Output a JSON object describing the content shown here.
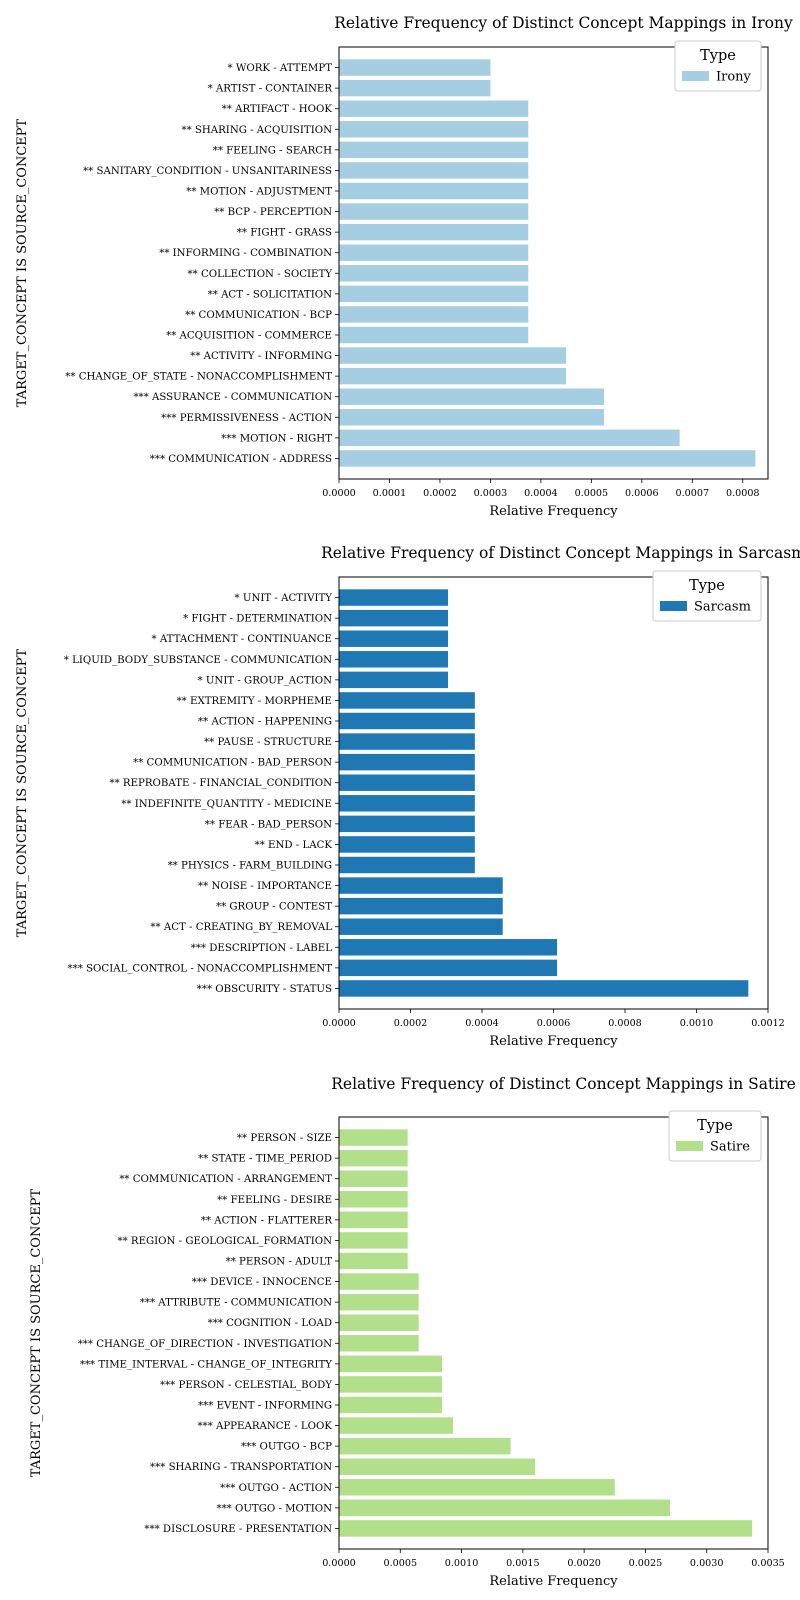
{
  "chart_data": [
    {
      "type": "bar",
      "orientation": "horizontal",
      "title": "Relative Frequency of Distinct Concept Mappings in Irony",
      "xlabel": "Relative Frequency",
      "ylabel": "TARGET_CONCEPT IS SOURCE_CONCEPT",
      "legend_title": "Type",
      "legend_position": "top-right",
      "series_name": "Irony",
      "color": "#a6cee3",
      "xlim": [
        0,
        0.00085
      ],
      "xticks": [
        "0.0000",
        "0.0001",
        "0.0002",
        "0.0003",
        "0.0004",
        "0.0005",
        "0.0006",
        "0.0007",
        "0.0008"
      ],
      "xtick_values": [
        0,
        0.0001,
        0.0002,
        0.0003,
        0.0004,
        0.0005,
        0.0006,
        0.0007,
        0.0008
      ],
      "categories": [
        "* WORK - ATTEMPT",
        "* ARTIST - CONTAINER",
        "** ARTIFACT - HOOK",
        "** SHARING - ACQUISITION",
        "** FEELING - SEARCH",
        "** SANITARY_CONDITION - UNSANITARINESS",
        "** MOTION - ADJUSTMENT",
        "** BCP - PERCEPTION",
        "** FIGHT - GRASS",
        "** INFORMING - COMBINATION",
        "** COLLECTION - SOCIETY",
        "** ACT - SOLICITATION",
        "** COMMUNICATION - BCP",
        "** ACQUISITION - COMMERCE",
        "** ACTIVITY - INFORMING",
        "** CHANGE_OF_STATE - NONACCOMPLISHMENT",
        "*** ASSURANCE - COMMUNICATION",
        "*** PERMISSIVENESS - ACTION",
        "*** MOTION - RIGHT",
        "*** COMMUNICATION - ADDRESS"
      ],
      "values": [
        0.0003,
        0.0003,
        0.000375,
        0.000375,
        0.000375,
        0.000375,
        0.000375,
        0.000375,
        0.000375,
        0.000375,
        0.000375,
        0.000375,
        0.000375,
        0.000375,
        0.00045,
        0.00045,
        0.000525,
        0.000525,
        0.000675,
        0.000825
      ]
    },
    {
      "type": "bar",
      "orientation": "horizontal",
      "title": "Relative Frequency of Distinct Concept Mappings in Sarcasm",
      "xlabel": "Relative Frequency",
      "ylabel": "TARGET_CONCEPT IS SOURCE_CONCEPT",
      "legend_title": "Type",
      "legend_position": "top-right",
      "series_name": "Sarcasm",
      "color": "#1f78b4",
      "xlim": [
        0,
        0.0012
      ],
      "xticks": [
        "0.0000",
        "0.0002",
        "0.0004",
        "0.0006",
        "0.0008",
        "0.0010",
        "0.0012"
      ],
      "xtick_values": [
        0,
        0.0002,
        0.0004,
        0.0006,
        0.0008,
        0.001,
        0.0012
      ],
      "categories": [
        "* UNIT - ACTIVITY",
        "* FIGHT - DETERMINATION",
        "* ATTACHMENT - CONTINUANCE",
        "* LIQUID_BODY_SUBSTANCE - COMMUNICATION",
        "* UNIT - GROUP_ACTION",
        "** EXTREMITY - MORPHEME",
        "** ACTION - HAPPENING",
        "** PAUSE - STRUCTURE",
        "** COMMUNICATION - BAD_PERSON",
        "** REPROBATE - FINANCIAL_CONDITION",
        "** INDEFINITE_QUANTITY - MEDICINE",
        "** FEAR - BAD_PERSON",
        "** END - LACK",
        "** PHYSICS - FARM_BUILDING",
        "** NOISE - IMPORTANCE",
        "** GROUP - CONTEST",
        "** ACT - CREATING_BY_REMOVAL",
        "*** DESCRIPTION - LABEL",
        "*** SOCIAL_CONTROL - NONACCOMPLISHMENT",
        "*** OBSCURITY - STATUS"
      ],
      "values": [
        0.000305,
        0.000305,
        0.000305,
        0.000305,
        0.000305,
        0.00038,
        0.00038,
        0.00038,
        0.00038,
        0.00038,
        0.00038,
        0.00038,
        0.00038,
        0.00038,
        0.000458,
        0.000458,
        0.000458,
        0.00061,
        0.00061,
        0.001145
      ]
    },
    {
      "type": "bar",
      "orientation": "horizontal",
      "title": "Relative Frequency of Distinct Concept Mappings in Satire",
      "xlabel": "Relative Frequency",
      "ylabel": "TARGET_CONCEPT IS SOURCE_CONCEPT",
      "legend_title": "Type",
      "legend_position": "top-right",
      "series_name": "Satire",
      "color": "#b2df8a",
      "xlim": [
        0,
        0.0035
      ],
      "xticks": [
        "0.0000",
        "0.0005",
        "0.0010",
        "0.0015",
        "0.0020",
        "0.0025",
        "0.0030",
        "0.0035"
      ],
      "xtick_values": [
        0,
        0.0005,
        0.001,
        0.0015,
        0.002,
        0.0025,
        0.003,
        0.0035
      ],
      "categories": [
        "** PERSON - SIZE",
        "** STATE - TIME_PERIOD",
        "** COMMUNICATION - ARRANGEMENT",
        "** FEELING - DESIRE",
        "** ACTION - FLATTERER",
        "** REGION - GEOLOGICAL_FORMATION",
        "** PERSON - ADULT",
        "*** DEVICE - INNOCENCE",
        "*** ATTRIBUTE - COMMUNICATION",
        "*** COGNITION - LOAD",
        "*** CHANGE_OF_DIRECTION - INVESTIGATION",
        "*** TIME_INTERVAL - CHANGE_OF_INTEGRITY",
        "*** PERSON - CELESTIAL_BODY",
        "*** EVENT - INFORMING",
        "*** APPEARANCE - LOOK",
        "*** OUTGO - BCP",
        "*** SHARING - TRANSPORTATION",
        "*** OUTGO - ACTION",
        "*** OUTGO - MOTION",
        "*** DISCLOSURE - PRESENTATION"
      ],
      "values": [
        0.00056,
        0.00056,
        0.00056,
        0.00056,
        0.00056,
        0.00056,
        0.00056,
        0.00065,
        0.00065,
        0.00065,
        0.00065,
        0.00084,
        0.00084,
        0.00084,
        0.00093,
        0.0014,
        0.0016,
        0.00225,
        0.0027,
        0.00337
      ]
    }
  ]
}
